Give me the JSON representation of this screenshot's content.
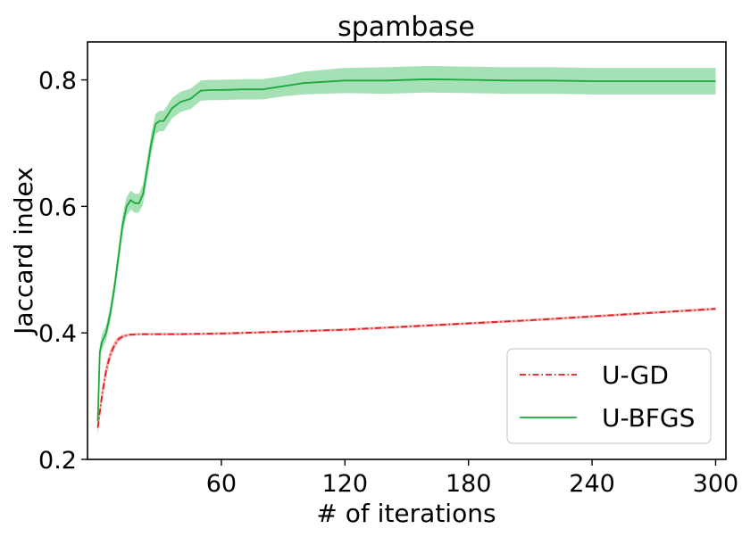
{
  "chart_data": {
    "type": "line",
    "title": "spambase",
    "xlabel": "# of iterations",
    "ylabel": "Jaccard index",
    "xlim": [
      -5,
      305
    ],
    "ylim": [
      0.2,
      0.86
    ],
    "x_ticks": [
      60,
      120,
      180,
      240,
      300
    ],
    "x_tick_labels": [
      "60",
      "120",
      "180",
      "240",
      "300"
    ],
    "y_ticks": [
      0.2,
      0.4,
      0.6,
      0.8
    ],
    "y_tick_labels": [
      "0.2",
      "0.4",
      "0.6",
      "0.8"
    ],
    "grid": false,
    "legend_position": "lower-right",
    "series": [
      {
        "name": "U-GD",
        "color": "#e41a1c",
        "band_color": "#f4a3a3",
        "line_style": "dash-dot",
        "x": [
          0,
          2,
          4,
          6,
          8,
          10,
          12,
          15,
          20,
          25,
          30,
          40,
          60,
          80,
          100,
          120,
          150,
          180,
          210,
          240,
          270,
          300
        ],
        "y": [
          0.25,
          0.3,
          0.34,
          0.365,
          0.38,
          0.39,
          0.394,
          0.397,
          0.398,
          0.398,
          0.398,
          0.398,
          0.399,
          0.401,
          0.403,
          0.405,
          0.41,
          0.415,
          0.42,
          0.426,
          0.432,
          0.438
        ],
        "band": [
          0.012,
          0.012,
          0.01,
          0.008,
          0.006,
          0.004,
          0.003,
          0.002,
          0.002,
          0.002,
          0.002,
          0.002,
          0.002,
          0.002,
          0.002,
          0.002,
          0.002,
          0.002,
          0.002,
          0.002,
          0.002,
          0.002
        ]
      },
      {
        "name": "U-BFGS",
        "color": "#1aa83a",
        "band_color": "#97dca8",
        "line_style": "solid",
        "x": [
          0,
          1,
          2,
          4,
          6,
          8,
          10,
          12,
          14,
          16,
          18,
          20,
          22,
          24,
          26,
          28,
          30,
          32,
          34,
          36,
          40,
          45,
          50,
          55,
          60,
          70,
          80,
          90,
          100,
          110,
          120,
          140,
          160,
          180,
          200,
          220,
          240,
          260,
          280,
          300
        ],
        "y": [
          0.26,
          0.37,
          0.385,
          0.4,
          0.43,
          0.47,
          0.52,
          0.57,
          0.6,
          0.61,
          0.605,
          0.605,
          0.62,
          0.66,
          0.7,
          0.73,
          0.735,
          0.735,
          0.745,
          0.755,
          0.765,
          0.77,
          0.783,
          0.784,
          0.784,
          0.785,
          0.785,
          0.79,
          0.795,
          0.797,
          0.799,
          0.799,
          0.801,
          0.8,
          0.799,
          0.799,
          0.798,
          0.798,
          0.798,
          0.798
        ],
        "band": [
          0.01,
          0.012,
          0.012,
          0.012,
          0.013,
          0.014,
          0.015,
          0.015,
          0.015,
          0.015,
          0.015,
          0.015,
          0.016,
          0.016,
          0.016,
          0.016,
          0.016,
          0.016,
          0.016,
          0.016,
          0.016,
          0.016,
          0.016,
          0.016,
          0.016,
          0.016,
          0.016,
          0.016,
          0.018,
          0.019,
          0.02,
          0.021,
          0.021,
          0.021,
          0.021,
          0.021,
          0.021,
          0.021,
          0.021,
          0.021
        ]
      }
    ]
  }
}
